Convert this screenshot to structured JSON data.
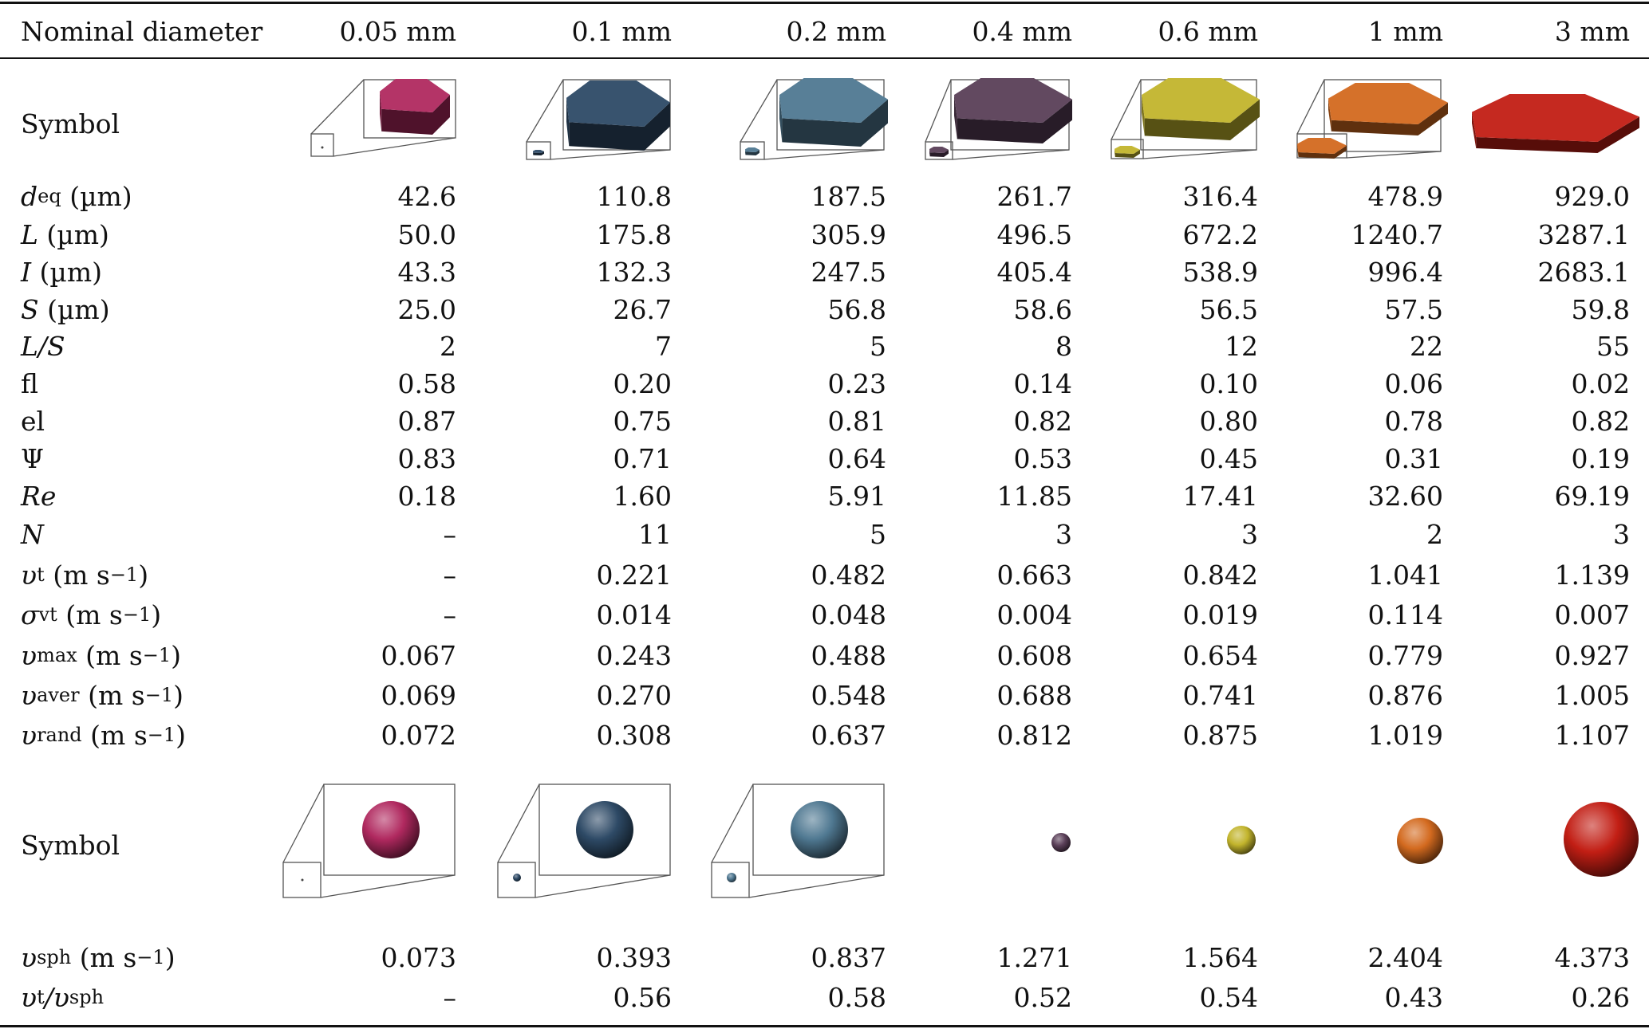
{
  "header": {
    "label": "Nominal diameter",
    "columns": [
      "0.05 mm",
      "0.1 mm",
      "0.2 mm",
      "0.4 mm",
      "0.6 mm",
      "1 mm",
      "3 mm"
    ]
  },
  "symbol_label": "Symbol",
  "colors": {
    "c0": "#b0295f",
    "c1": "#2e4a66",
    "c2": "#4f7891",
    "c3": "#5a3f58",
    "c4": "#c2b42c",
    "c5": "#d36a1f",
    "c6": "#c21e14"
  },
  "rows": [
    {
      "id": "deq",
      "label_main": "d",
      "label_sub": "eq",
      "label_unit": " (µm)",
      "values": [
        "42.6",
        "110.8",
        "187.5",
        "261.7",
        "316.4",
        "478.9",
        "929.0"
      ]
    },
    {
      "id": "L",
      "label_main": "L",
      "label_sub": "",
      "label_unit": " (µm)",
      "values": [
        "50.0",
        "175.8",
        "305.9",
        "496.5",
        "672.2",
        "1240.7",
        "3287.1"
      ]
    },
    {
      "id": "I",
      "label_main": "I",
      "label_sub": "",
      "label_unit": " (µm)",
      "values": [
        "43.3",
        "132.3",
        "247.5",
        "405.4",
        "538.9",
        "996.4",
        "2683.1"
      ]
    },
    {
      "id": "S",
      "label_main": "S",
      "label_sub": "",
      "label_unit": " (µm)",
      "values": [
        "25.0",
        "26.7",
        "56.8",
        "58.6",
        "56.5",
        "57.5",
        "59.8"
      ]
    },
    {
      "id": "LS",
      "label_main": "L/S",
      "label_sub": "",
      "label_unit": "",
      "values": [
        "2",
        "7",
        "5",
        "8",
        "12",
        "22",
        "55"
      ]
    },
    {
      "id": "fl",
      "label_plain": "fl",
      "values": [
        "0.58",
        "0.20",
        "0.23",
        "0.14",
        "0.10",
        "0.06",
        "0.02"
      ]
    },
    {
      "id": "el",
      "label_plain": "el",
      "values": [
        "0.87",
        "0.75",
        "0.81",
        "0.82",
        "0.80",
        "0.78",
        "0.82"
      ]
    },
    {
      "id": "psi",
      "label_plain": "Ψ",
      "values": [
        "0.83",
        "0.71",
        "0.64",
        "0.53",
        "0.45",
        "0.31",
        "0.19"
      ]
    },
    {
      "id": "Re",
      "label_main": "Re",
      "label_sub": "",
      "label_unit": "",
      "values": [
        "0.18",
        "1.60",
        "5.91",
        "11.85",
        "17.41",
        "32.60",
        "69.19"
      ]
    },
    {
      "id": "N",
      "label_main": "N",
      "label_sub": "",
      "label_unit": "",
      "values": [
        "–",
        "11",
        "5",
        "3",
        "3",
        "2",
        "3"
      ]
    },
    {
      "id": "vt",
      "label_main": "υ",
      "label_sub": "t",
      "label_unit": " (m s",
      "label_sup": "−1",
      "label_close": ")",
      "values": [
        "–",
        "0.221",
        "0.482",
        "0.663",
        "0.842",
        "1.041",
        "1.139"
      ]
    },
    {
      "id": "svt",
      "label_main": "σ",
      "label_sub": "vt",
      "label_unit": " (m s",
      "label_sup": "−1",
      "label_close": ")",
      "values": [
        "–",
        "0.014",
        "0.048",
        "0.004",
        "0.019",
        "0.114",
        "0.007"
      ]
    },
    {
      "id": "vmax",
      "label_main": "υ",
      "label_sub": "max",
      "label_unit": " (m s",
      "label_sup": "−1",
      "label_close": ")",
      "values": [
        "0.067",
        "0.243",
        "0.488",
        "0.608",
        "0.654",
        "0.779",
        "0.927"
      ]
    },
    {
      "id": "vaver",
      "label_main": "υ",
      "label_sub": "aver",
      "label_unit": " (m s",
      "label_sup": "−1",
      "label_close": ")",
      "values": [
        "0.069",
        "0.270",
        "0.548",
        "0.688",
        "0.741",
        "0.876",
        "1.005"
      ]
    },
    {
      "id": "vrand",
      "label_main": "υ",
      "label_sub": "rand",
      "label_unit": " (m s",
      "label_sup": "−1",
      "label_close": ")",
      "values": [
        "0.072",
        "0.308",
        "0.637",
        "0.812",
        "0.875",
        "1.019",
        "1.107"
      ]
    }
  ],
  "rows_bottom": [
    {
      "id": "vsph",
      "label_main": "υ",
      "label_sub": "sph",
      "label_unit": " (m s",
      "label_sup": "−1",
      "label_close": ")",
      "values": [
        "0.073",
        "0.393",
        "0.837",
        "1.271",
        "1.564",
        "2.404",
        "4.373"
      ]
    },
    {
      "id": "vtvsph",
      "label_main": "υ",
      "label_sub": "t",
      "label_div": "/",
      "label_main2": "υ",
      "label_sub2": "sph",
      "values": [
        "–",
        "0.56",
        "0.58",
        "0.52",
        "0.54",
        "0.43",
        "0.26"
      ]
    }
  ]
}
